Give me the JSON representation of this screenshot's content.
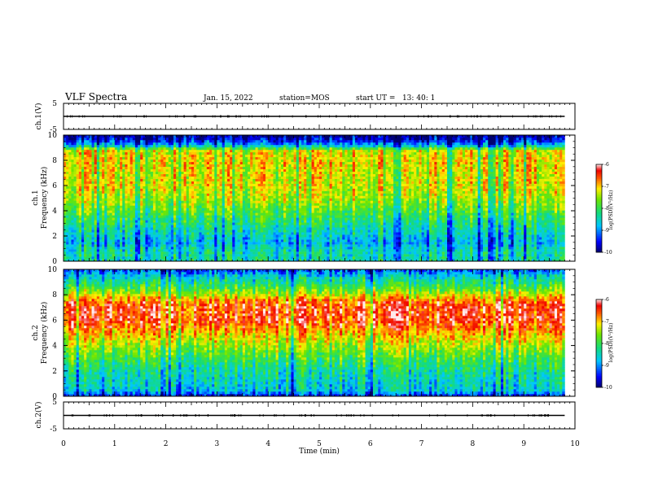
{
  "header": {
    "title": "VLF Spectra",
    "date": "Jan. 15, 2022",
    "station": "station=MOS",
    "start": "start UT =   13: 40: 1"
  },
  "chart_data": [
    {
      "type": "line",
      "ylabel": "ch.1(V)",
      "ylim": [
        -5,
        5
      ],
      "yticks": [
        5,
        -5
      ],
      "series": [
        {
          "x": [
            0,
            9.8
          ],
          "y": [
            0,
            0
          ]
        }
      ]
    },
    {
      "type": "heatmap",
      "ylabel_line1": "ch.1",
      "ylabel_line2": "Frequency (kHz)",
      "ylim": [
        0,
        10
      ],
      "yticks": [
        0,
        2,
        4,
        6,
        8,
        10
      ],
      "colorbar": {
        "range": [
          -10,
          -6
        ],
        "ticks": [
          -6,
          -7,
          -8,
          -9,
          -10
        ],
        "label": "log(PSD)(V²/Hz)"
      },
      "profile": {
        "freq_khz": [
          0,
          0.5,
          1,
          1.5,
          2,
          3,
          4,
          5,
          6,
          7,
          8,
          8.8,
          9.2,
          9.6,
          10
        ],
        "log_psd": [
          -8.4,
          -8.4,
          -8.5,
          -8.8,
          -8.6,
          -8.2,
          -7.8,
          -7.4,
          -7.2,
          -7.2,
          -7.1,
          -7.2,
          -8.8,
          -9.5,
          -9.9
        ]
      }
    },
    {
      "type": "heatmap",
      "ylabel_line1": "ch.2",
      "ylabel_line2": "Frequency (kHz)",
      "ylim": [
        0,
        10
      ],
      "yticks": [
        0,
        2,
        4,
        6,
        8,
        10
      ],
      "colorbar": {
        "range": [
          -10,
          -6
        ],
        "ticks": [
          -6,
          -7,
          -8,
          -9,
          -10
        ],
        "label": "log(PSD)(V²/Hz)"
      },
      "profile": {
        "freq_khz": [
          0,
          0.5,
          1,
          2,
          3,
          4,
          5,
          6,
          7,
          7.5,
          8.5,
          9.5,
          10
        ],
        "log_psd": [
          -9.5,
          -8.6,
          -8.5,
          -8.3,
          -7.9,
          -7.4,
          -6.9,
          -6.4,
          -6.4,
          -6.6,
          -7.8,
          -8.6,
          -9.3
        ]
      }
    },
    {
      "type": "line",
      "ylabel": "ch.2(V)",
      "ylim": [
        -5,
        5
      ],
      "yticks": [
        5,
        -5
      ],
      "series": [
        {
          "x": [
            0,
            9.8
          ],
          "y": [
            0,
            0
          ]
        }
      ]
    }
  ],
  "xaxis": {
    "label": "Time (min)",
    "ticks": [
      0,
      1,
      2,
      3,
      4,
      5,
      6,
      7,
      8,
      9,
      10
    ],
    "range": [
      0,
      10
    ],
    "data_end": 9.8
  }
}
